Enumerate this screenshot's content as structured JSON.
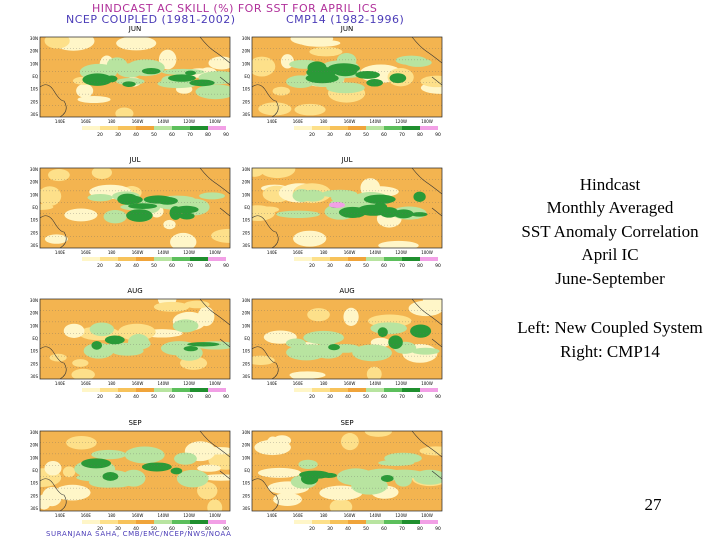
{
  "header": {
    "title": "HINDCAST AC SKILL (%) FOR SST FOR APRIL ICS",
    "left_label": "NCEP COUPLED (1981-2002)",
    "right_label": "CMP14 (1982-1996)"
  },
  "panels": [
    {
      "month": "JUN"
    },
    {
      "month": "JUN"
    },
    {
      "month": "JUL"
    },
    {
      "month": "JUL"
    },
    {
      "month": "AUG"
    },
    {
      "month": "AUG"
    },
    {
      "month": "SEP"
    },
    {
      "month": "SEP"
    }
  ],
  "lat_labels": [
    "30N",
    "20N",
    "10N",
    "EQ",
    "10S",
    "20S",
    "30S"
  ],
  "lon_labels": [
    "140E",
    "160E",
    "180",
    "160W",
    "140W",
    "120W",
    "100W"
  ],
  "colorbar_labels": [
    "20",
    "30",
    "40",
    "50",
    "60",
    "70",
    "80",
    "90"
  ],
  "caption": {
    "lines": [
      "Hindcast",
      "Monthly Averaged",
      "SST Anomaly Correlation",
      "April IC",
      "June-September"
    ],
    "models": [
      "Left: New Coupled System",
      "Right: CMP14"
    ]
  },
  "page_number": "27",
  "footer": "SURANJANA SAHA, CMB/EMC/NCEP/NWS/NOAA"
}
